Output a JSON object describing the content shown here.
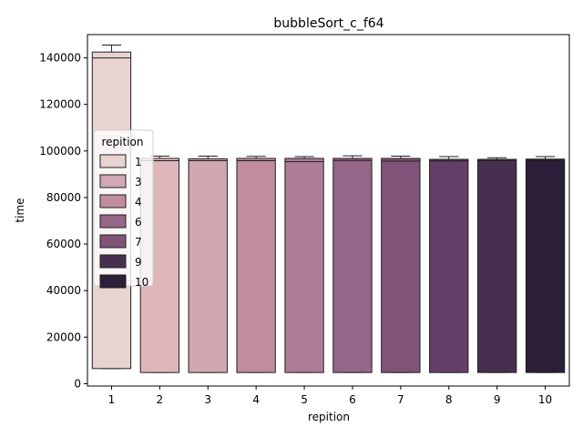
{
  "chart_data": {
    "type": "box",
    "title": "bubbleSort_c_f64",
    "xlabel": "repition",
    "ylabel": "time",
    "ylim": [
      -1000,
      150000
    ],
    "categories": [
      "1",
      "2",
      "3",
      "4",
      "5",
      "6",
      "7",
      "8",
      "9",
      "10"
    ],
    "yticks": [
      0,
      20000,
      40000,
      60000,
      80000,
      100000,
      120000,
      140000
    ],
    "ytick_labels": [
      "0",
      "20000",
      "40000",
      "60000",
      "80000",
      "100000",
      "120000",
      "140000"
    ],
    "boxes": [
      {
        "category": "1",
        "color": "#e8d3d1",
        "whisker_low": 6500,
        "q1": 6500,
        "median": 140000,
        "q3": 142500,
        "whisker_high": 145500
      },
      {
        "category": "2",
        "color": "#ddb7ba",
        "whisker_low": 4800,
        "q1": 4800,
        "median": 95800,
        "q3": 96800,
        "whisker_high": 97800
      },
      {
        "category": "3",
        "color": "#d1a8b1",
        "whisker_low": 4800,
        "q1": 4800,
        "median": 95800,
        "q3": 96600,
        "whisker_high": 97800
      },
      {
        "category": "4",
        "color": "#c08c9f",
        "whisker_low": 4800,
        "q1": 4800,
        "median": 95800,
        "q3": 96800,
        "whisker_high": 97700
      },
      {
        "category": "5",
        "color": "#ae7c97",
        "whisker_low": 4800,
        "q1": 4800,
        "median": 95400,
        "q3": 96800,
        "whisker_high": 97600
      },
      {
        "category": "6",
        "color": "#956687",
        "whisker_low": 4800,
        "q1": 4800,
        "median": 95900,
        "q3": 96800,
        "whisker_high": 97900
      },
      {
        "category": "7",
        "color": "#7f5478",
        "whisker_low": 4800,
        "q1": 4800,
        "median": 95600,
        "q3": 96800,
        "whisker_high": 97800
      },
      {
        "category": "8",
        "color": "#643e68",
        "whisker_low": 4800,
        "q1": 4800,
        "median": 95700,
        "q3": 96400,
        "whisker_high": 97600
      },
      {
        "category": "9",
        "color": "#47304f",
        "whisker_low": 4800,
        "q1": 4800,
        "median": 95800,
        "q3": 96400,
        "whisker_high": 97100
      },
      {
        "category": "10",
        "color": "#2c1f3a",
        "whisker_low": 4800,
        "q1": 4800,
        "median": 95800,
        "q3": 96500,
        "whisker_high": 97600
      }
    ],
    "legend": {
      "title": "repition",
      "placement": "center-left",
      "entries": [
        {
          "label": "1",
          "color": "#e8d3d1"
        },
        {
          "label": "3",
          "color": "#d1a8b1"
        },
        {
          "label": "4",
          "color": "#c08c9f"
        },
        {
          "label": "6",
          "color": "#956687"
        },
        {
          "label": "7",
          "color": "#7f5478"
        },
        {
          "label": "9",
          "color": "#47304f"
        },
        {
          "label": "10",
          "color": "#2c1f3a"
        }
      ]
    },
    "grid": false
  }
}
